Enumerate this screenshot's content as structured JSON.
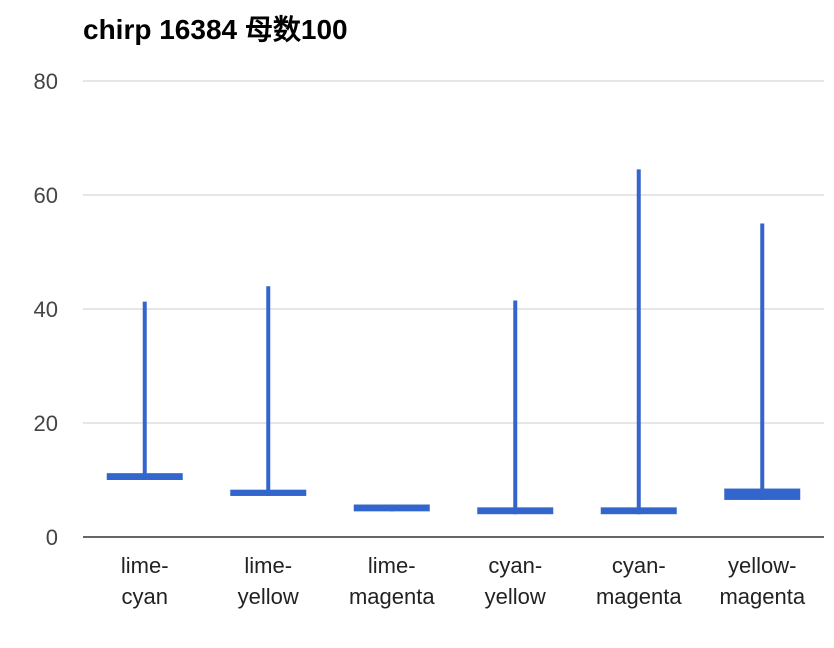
{
  "chart_data": {
    "type": "candlestick",
    "title": "chirp 16384 母数100",
    "xlabel": "",
    "ylabel": "",
    "ylim": [
      0,
      80
    ],
    "yticks": [
      0,
      20,
      40,
      60,
      80
    ],
    "grid": true,
    "categories": [
      [
        "lime-",
        "cyan"
      ],
      [
        "lime-",
        "yellow"
      ],
      [
        "lime-",
        "magenta"
      ],
      [
        "cyan-",
        "yellow"
      ],
      [
        "cyan-",
        "magenta"
      ],
      [
        "yellow-",
        "magenta"
      ]
    ],
    "series": [
      {
        "color": "#3366cc",
        "low": [
          10.0,
          7.2,
          4.5,
          4.0,
          4.0,
          6.5
        ],
        "open": [
          10.0,
          7.2,
          4.5,
          4.0,
          4.0,
          6.5
        ],
        "close": [
          11.2,
          8.3,
          5.7,
          5.2,
          5.2,
          8.5
        ],
        "high": [
          41.3,
          44.0,
          5.7,
          41.5,
          64.5,
          55.0
        ]
      }
    ]
  }
}
